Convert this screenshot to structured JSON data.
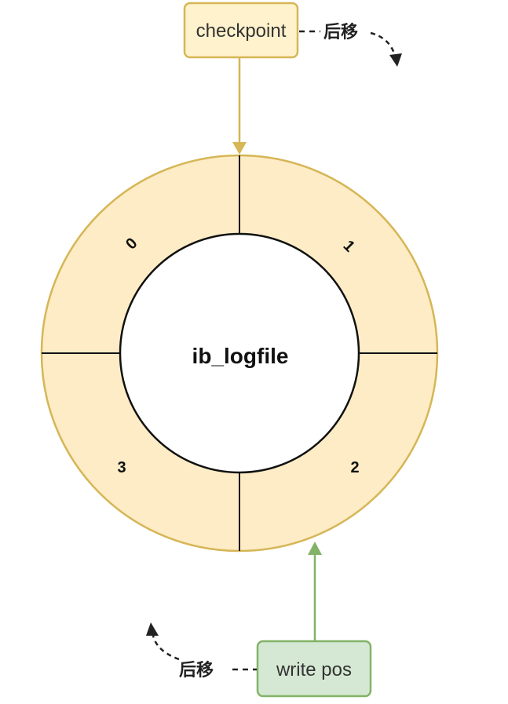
{
  "diagram": {
    "center_label": "ib_logfile",
    "segments": [
      "0",
      "1",
      "2",
      "3"
    ],
    "checkpoint": {
      "label": "checkpoint",
      "move_label": "后移"
    },
    "write_pos": {
      "label": "write pos",
      "move_label": "后移"
    }
  },
  "colors": {
    "ring_fill": "#fdecc6",
    "ring_stroke": "#d6b656",
    "checkpoint_fill": "#fff2cc",
    "checkpoint_stroke": "#d6b656",
    "write_fill": "#d5e8d4",
    "write_stroke": "#82b366",
    "line": "#111111"
  }
}
